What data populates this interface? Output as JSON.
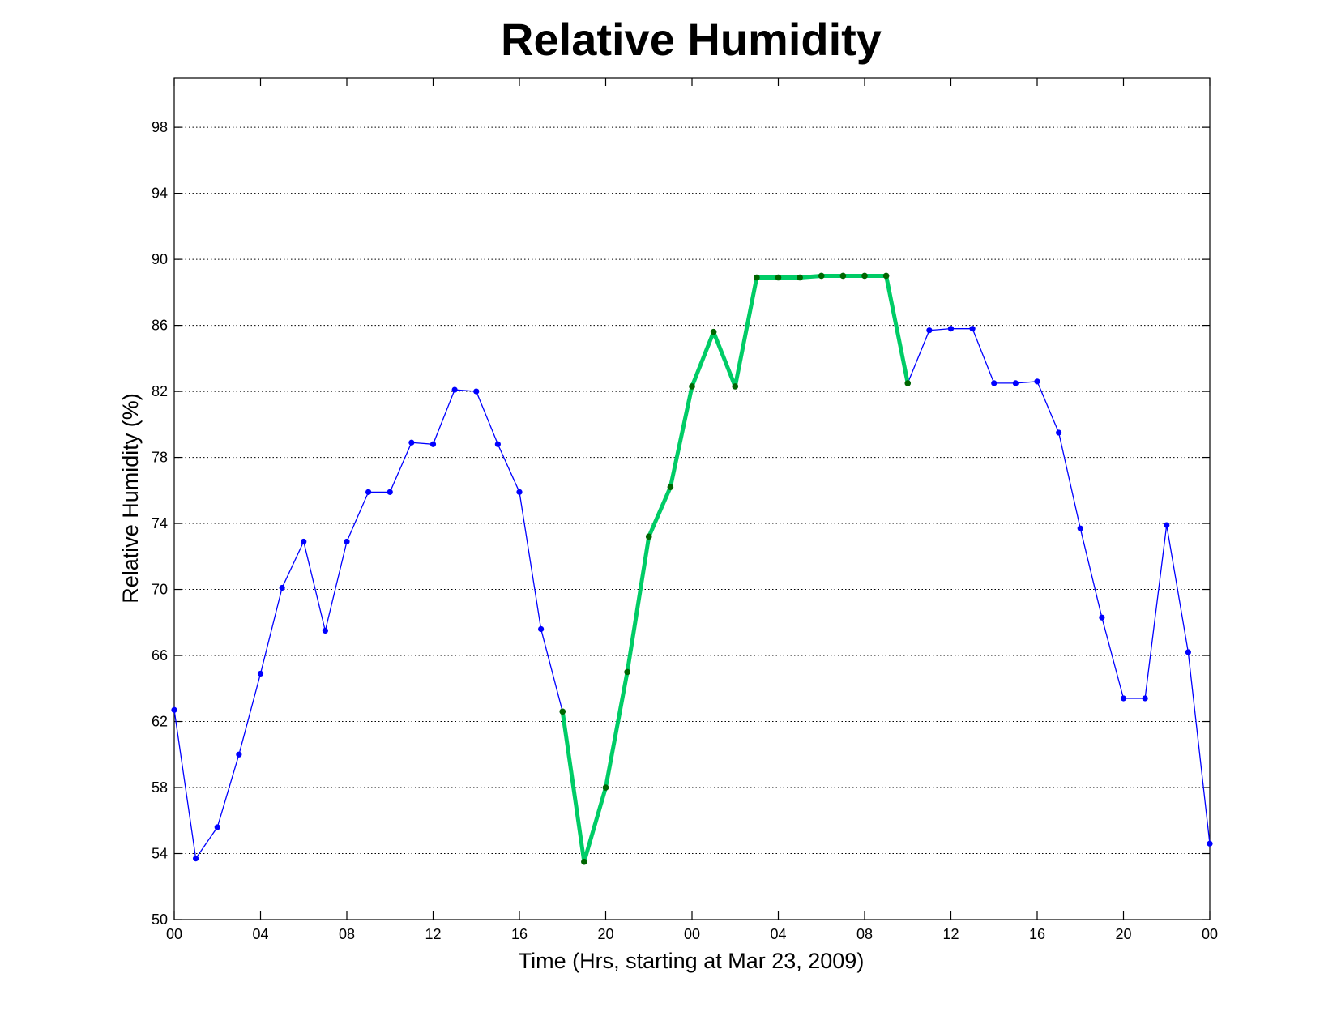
{
  "chart_data": {
    "type": "line",
    "title": "Relative Humidity",
    "xlabel": "Time (Hrs, starting at Mar 23, 2009)",
    "ylabel": "Relative Humidity (%)",
    "xlim": [
      0,
      48
    ],
    "ylim": [
      50,
      101
    ],
    "yticks": [
      50,
      54,
      58,
      62,
      66,
      70,
      74,
      78,
      82,
      86,
      90,
      94,
      98
    ],
    "xticks": [
      0,
      4,
      8,
      12,
      16,
      20,
      24,
      28,
      32,
      36,
      40,
      44,
      48
    ],
    "xtick_labels": [
      "00",
      "04",
      "08",
      "12",
      "16",
      "20",
      "00",
      "04",
      "08",
      "12",
      "16",
      "20",
      "00"
    ],
    "grid": "horizontal-dotted",
    "x": [
      0,
      1,
      2,
      3,
      4,
      5,
      6,
      7,
      8,
      9,
      10,
      11,
      12,
      13,
      14,
      15,
      16,
      17,
      18,
      19,
      20,
      21,
      22,
      23,
      24,
      25,
      26,
      27,
      28,
      29,
      30,
      31,
      32,
      33,
      34,
      35,
      36,
      37,
      38,
      39,
      40,
      41,
      42,
      43,
      44,
      45,
      46,
      47,
      48
    ],
    "series": [
      {
        "color": "#0000ff",
        "line_width": "thin",
        "marker": "dot",
        "values": [
          62.7,
          53.7,
          55.6,
          60.0,
          64.9,
          70.1,
          72.9,
          67.5,
          72.9,
          75.9,
          75.9,
          78.9,
          78.8,
          82.1,
          82.0,
          78.8,
          75.9,
          67.6,
          62.6,
          53.5,
          58.0,
          65.0,
          73.2,
          76.2,
          82.3,
          85.6,
          82.3,
          88.9,
          88.9,
          88.9,
          89.0,
          89.0,
          89.0,
          89.0,
          82.5,
          85.7,
          85.8,
          85.8,
          82.5,
          82.5,
          82.6,
          79.5,
          73.7,
          68.3,
          63.4,
          63.4,
          73.9,
          66.2,
          54.6
        ]
      },
      {
        "color": "#00cc66",
        "marker_color": "#006600",
        "line_width": "thick",
        "marker": "dot",
        "range": [
          18,
          34
        ]
      }
    ]
  }
}
